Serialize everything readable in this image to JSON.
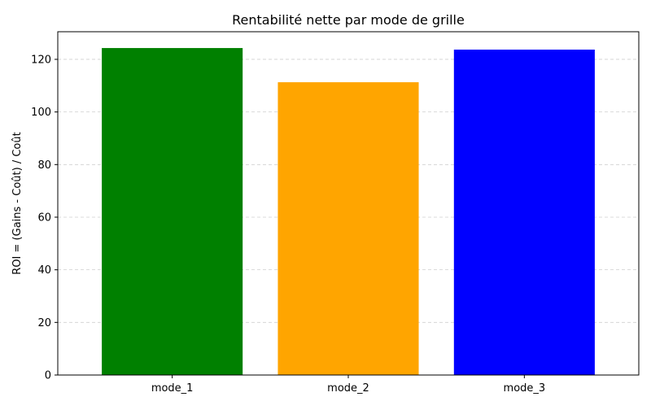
{
  "chart_data": {
    "type": "bar",
    "title": "Rentabilité nette par mode de grille",
    "xlabel": "",
    "ylabel": "ROI = (Gains - Coût) / Coût",
    "categories": [
      "mode_1",
      "mode_2",
      "mode_3"
    ],
    "values": [
      124.3,
      111.3,
      123.7
    ],
    "colors": [
      "#008000",
      "#ffa500",
      "#0000ff"
    ],
    "ylim": [
      0,
      130.5
    ],
    "yticks": [
      0,
      20,
      40,
      60,
      80,
      100,
      120
    ],
    "grid": {
      "y": true,
      "style": "dashed"
    },
    "legend": "none"
  }
}
